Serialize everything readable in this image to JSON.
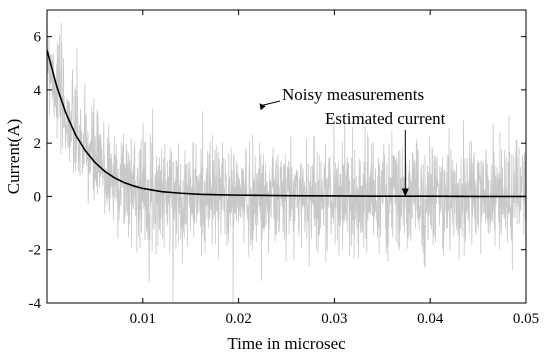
{
  "chart_data": {
    "type": "line",
    "title": "",
    "xlabel": "Time in microsec",
    "ylabel": "Current(A)",
    "xlim": [
      0,
      0.05
    ],
    "ylim": [
      -4,
      7
    ],
    "x_ticks": [
      0.01,
      0.02,
      0.03,
      0.04,
      0.05
    ],
    "x_tick_labels": [
      "0.01",
      "0.02",
      "0.03",
      "0.04",
      "0.05"
    ],
    "y_ticks": [
      -4,
      -2,
      0,
      2,
      4,
      6
    ],
    "y_tick_labels": [
      "-4",
      "-2",
      "0",
      "2",
      "4",
      "6"
    ],
    "grid": false,
    "series": [
      {
        "name": "Noisy measurements",
        "color": "#c8c8c8",
        "style": "noisy",
        "description_values": {
          "x_start": 0,
          "x_end": 0.05,
          "initial_value": 5.5,
          "decay_time_constant": 0.0035,
          "noise_std": 1.0
        }
      },
      {
        "name": "Estimated current",
        "color": "#000000",
        "x": [
          0,
          0.001,
          0.002,
          0.003,
          0.004,
          0.005,
          0.006,
          0.007,
          0.008,
          0.009,
          0.01,
          0.012,
          0.014,
          0.016,
          0.018,
          0.02,
          0.025,
          0.03,
          0.035,
          0.04,
          0.045,
          0.05
        ],
        "values": [
          5.5,
          4.15,
          3.1,
          2.3,
          1.72,
          1.28,
          0.95,
          0.71,
          0.53,
          0.4,
          0.3,
          0.18,
          0.12,
          0.08,
          0.06,
          0.05,
          0.03,
          0.02,
          0.01,
          0.01,
          0.0,
          0.0
        ]
      }
    ],
    "annotations": [
      {
        "text": "Noisy measurements",
        "points_to": {
          "x": 0.0223,
          "y": 3.2
        }
      },
      {
        "text": "Estimated current",
        "points_to": {
          "x": 0.0374,
          "y": 0.0
        }
      }
    ]
  }
}
